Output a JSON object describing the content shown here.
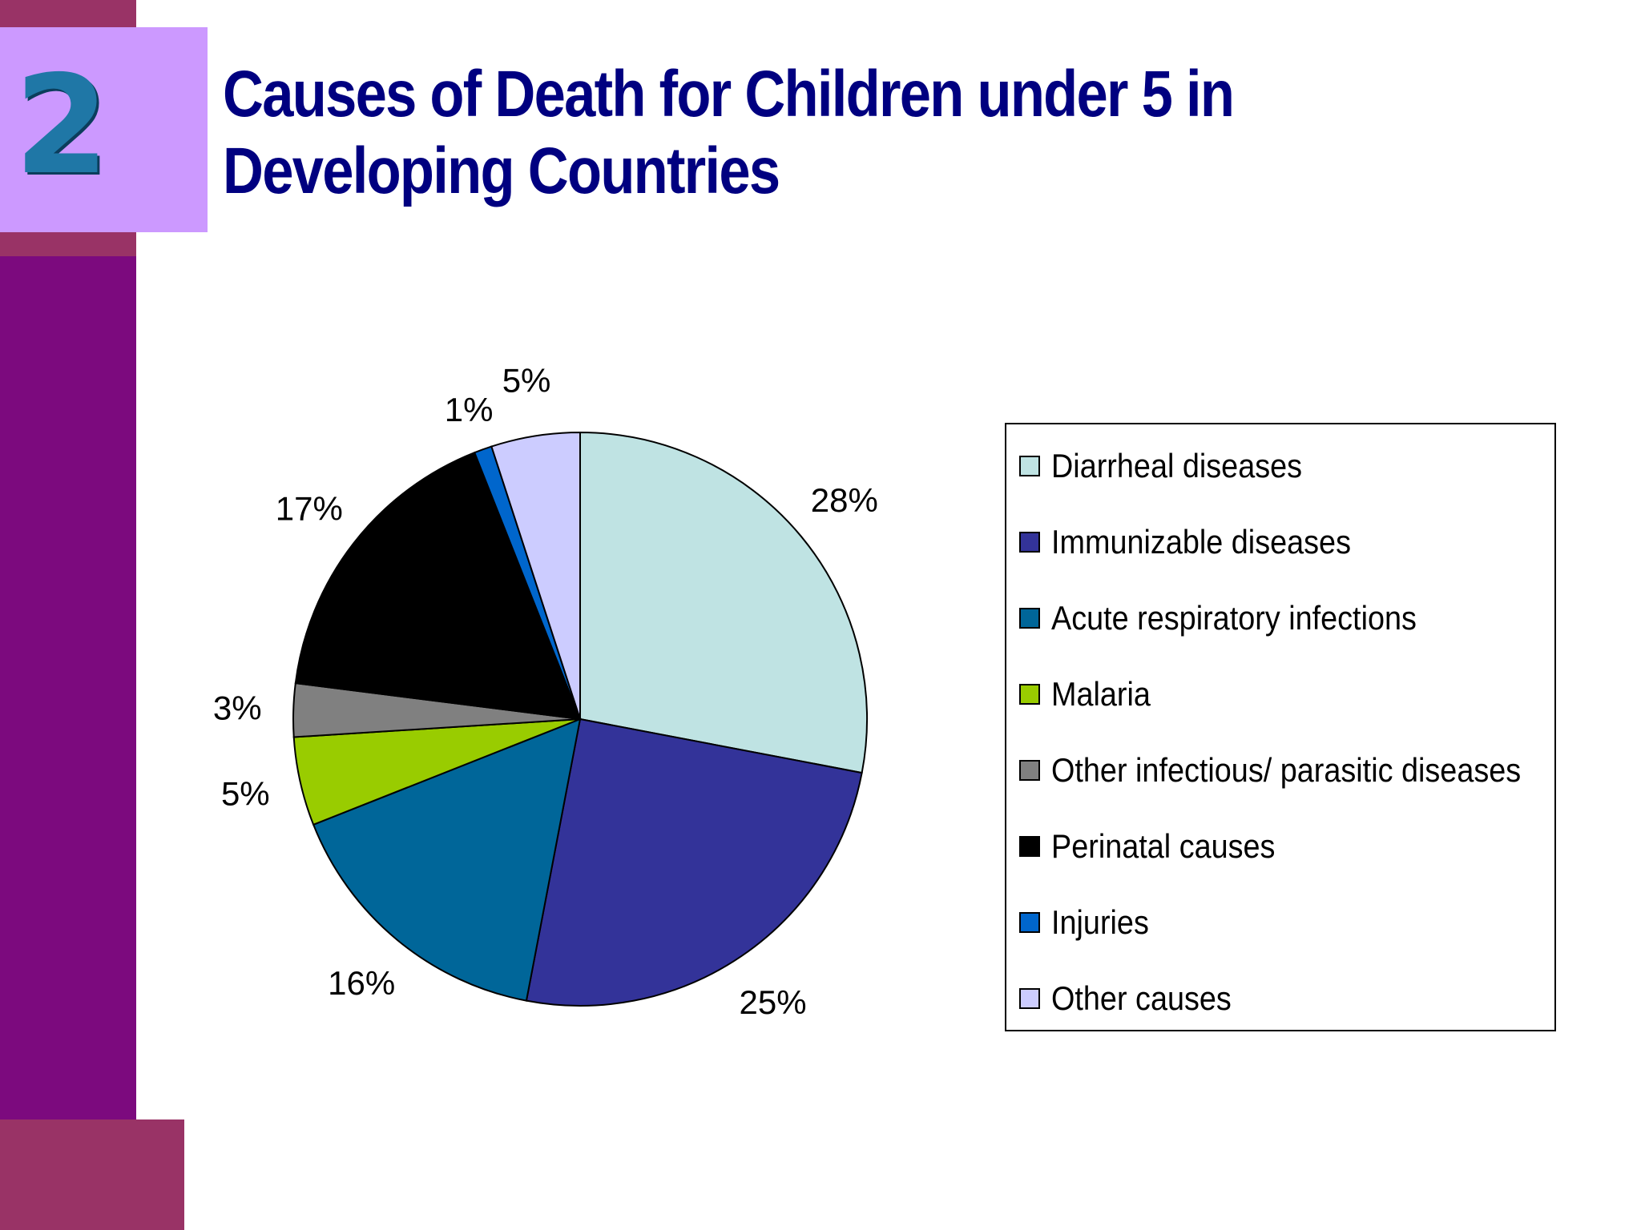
{
  "slide": {
    "number": "2",
    "title": "Causes of Death for Children under 5 in Developing Countries"
  },
  "chart_data": {
    "type": "pie",
    "title": "",
    "legend_position": "right",
    "slices": [
      {
        "name": "Diarrheal diseases",
        "value": 28,
        "label": "28%",
        "color": "#bfe3e3"
      },
      {
        "name": "Immunizable diseases",
        "value": 25,
        "label": "25%",
        "color": "#333399"
      },
      {
        "name": "Acute respiratory infections",
        "value": 16,
        "label": "16%",
        "color": "#006699"
      },
      {
        "name": "Malaria",
        "value": 5,
        "label": "5%",
        "color": "#99cc00"
      },
      {
        "name": "Other infectious/ parasitic diseases",
        "value": 3,
        "label": "3%",
        "color": "#808080"
      },
      {
        "name": "Perinatal causes",
        "value": 17,
        "label": "17%",
        "color": "#000000"
      },
      {
        "name": "Injuries",
        "value": 1,
        "label": "1%",
        "color": "#0066cc"
      },
      {
        "name": "Other causes",
        "value": 5,
        "label": "5%",
        "color": "#ccccff"
      }
    ]
  }
}
